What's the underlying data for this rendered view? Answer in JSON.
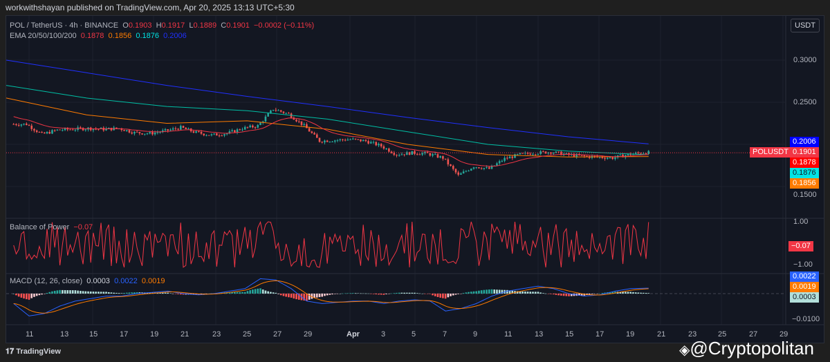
{
  "header": {
    "published": "workwithshayan published on TradingView.com, Apr 20, 2025 13:13 UTC+5:30"
  },
  "symbol": {
    "title": "POL / TetherUS · 4h · BINANCE",
    "o_label": "O",
    "o": "0.1903",
    "h_label": "H",
    "h": "0.1917",
    "l_label": "L",
    "l": "0.1889",
    "c_label": "C",
    "c": "0.1901",
    "change": "−0.0002 (−0.11%)"
  },
  "ema": {
    "label": "EMA 20/50/100/200",
    "v20": "0.1878",
    "v50": "0.1856",
    "v100": "0.1876",
    "v200": "0.2006"
  },
  "currency": "USDT",
  "price_axis": {
    "ticks": [
      "0.3000",
      "0.2500",
      "0.1500"
    ],
    "tags": {
      "ema200": "0.2006",
      "symbol": "POLUSDT",
      "last": "0.1901",
      "ema20": "0.1878",
      "ema100": "0.1876",
      "ema50": "0.1856"
    }
  },
  "bop": {
    "label": "Balance of Power",
    "value": "−0.07",
    "ticks": [
      "1.00",
      "−1.00"
    ]
  },
  "macd": {
    "label": "MACD (12, 26, close)",
    "hist": "0.0003",
    "macd": "0.0022",
    "signal": "0.0019",
    "ticks": [
      "−0.0100"
    ]
  },
  "time_axis": [
    "11",
    "13",
    "15",
    "17",
    "19",
    "21",
    "23",
    "25",
    "27",
    "29",
    "Apr",
    "3",
    "5",
    "7",
    "9",
    "11",
    "13",
    "15",
    "17",
    "19",
    "21",
    "23",
    "25",
    "27",
    "29"
  ],
  "footer": {
    "brand": "TradingView",
    "watermark": "@Cryptopolitan"
  },
  "colors": {
    "up": "#26a69a",
    "down": "#ef5350",
    "ema20": "#f23645",
    "ema50": "#ff7b00",
    "ema100": "#00bfa5",
    "ema200": "#2030ff",
    "bop": "#f23645",
    "macd": "#2962ff",
    "signal": "#ff7b00"
  },
  "chart_data": {
    "type": "candlestick",
    "timeframe": "4h",
    "start_date": "Mar 10",
    "daily_close": [
      0.224,
      0.212,
      0.217,
      0.218,
      0.219,
      0.218,
      0.219,
      0.214,
      0.213,
      0.216,
      0.22,
      0.214,
      0.211,
      0.213,
      0.219,
      0.222,
      0.242,
      0.236,
      0.222,
      0.204,
      0.205,
      0.206,
      0.204,
      0.198,
      0.188,
      0.19,
      0.189,
      0.184,
      0.163,
      0.174,
      0.171,
      0.183,
      0.188,
      0.19,
      0.191,
      0.188,
      0.186,
      0.185,
      0.184,
      0.188,
      0.1905,
      0.1901
    ],
    "ema200_samples": [
      0.3,
      0.285,
      0.27,
      0.257,
      0.245,
      0.232,
      0.22,
      0.209,
      0.2006
    ],
    "ema100_samples": [
      0.27,
      0.255,
      0.245,
      0.24,
      0.23,
      0.215,
      0.2,
      0.192,
      0.1876
    ],
    "ema50_samples": [
      0.255,
      0.235,
      0.225,
      0.228,
      0.218,
      0.2,
      0.188,
      0.185,
      0.1856
    ],
    "macd_daily": [
      -0.004,
      -0.009,
      -0.008,
      -0.005,
      -0.003,
      -0.002,
      -0.001,
      -0.001,
      0,
      0.0005,
      0.001,
      0,
      -0.0005,
      0,
      0.001,
      0.002,
      0.006,
      0.0055,
      0.002,
      -0.003,
      -0.004,
      -0.0035,
      -0.003,
      -0.003,
      -0.004,
      -0.003,
      -0.0025,
      -0.003,
      -0.007,
      -0.006,
      -0.004,
      -0.001,
      0.001,
      0.002,
      0.003,
      0.002,
      0,
      -0.001,
      -0.0005,
      0.001,
      0.002,
      0.0022
    ],
    "price_ylim": [
      0.14,
      0.32
    ],
    "bop_ylim": [
      -1,
      1
    ],
    "macd_ylim": [
      -0.011,
      0.007
    ]
  }
}
